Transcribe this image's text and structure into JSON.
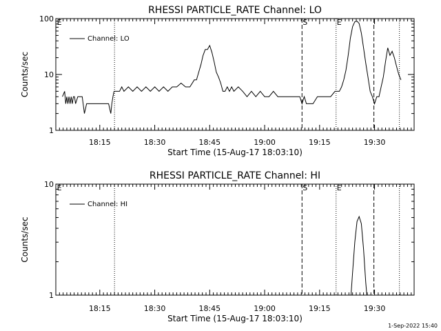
{
  "chart_data": [
    {
      "type": "line",
      "title": "RHESSI PARTICLE_RATE Channel: LO",
      "xlabel": "Start Time (15-Aug-17 18:03:10)",
      "ylabel": "Counts/sec",
      "yscale": "log",
      "ylim": [
        1,
        100
      ],
      "y_ticks": [
        1,
        10,
        100
      ],
      "y_tick_labels": [
        "1",
        "10",
        "100"
      ],
      "x_unit": "minutes",
      "xlim": [
        18.05,
        19.68
      ],
      "x_ticks": [
        18.25,
        18.5,
        18.75,
        19.0,
        19.25,
        19.5
      ],
      "x_tick_labels": [
        "18:15",
        "18:30",
        "18:45",
        "19:00",
        "19:15",
        "19:30"
      ],
      "legend": {
        "placement": "top-left",
        "entries": [
          "Channel: LO"
        ]
      },
      "markers": [
        {
          "x": 18.052,
          "label": "E",
          "style": "none"
        },
        {
          "x": 18.317,
          "label": "",
          "style": "dotted"
        },
        {
          "x": 19.17,
          "label": "S",
          "style": "dashed"
        },
        {
          "x": 19.325,
          "label": "E",
          "style": "dotted"
        },
        {
          "x": 19.497,
          "label": "",
          "style": "dashed"
        },
        {
          "x": 19.613,
          "label": "",
          "style": "dotted"
        }
      ],
      "series": [
        {
          "name": "Channel: LO",
          "x": [
            18.08,
            18.09,
            18.095,
            18.1,
            18.105,
            18.11,
            18.115,
            18.12,
            18.125,
            18.13,
            18.135,
            18.14,
            18.15,
            18.16,
            18.17,
            18.18,
            18.19,
            18.2,
            18.21,
            18.22,
            18.23,
            18.24,
            18.25,
            18.26,
            18.27,
            18.28,
            18.29,
            18.3,
            18.305,
            18.31,
            18.315,
            18.32,
            18.33,
            18.34,
            18.35,
            18.36,
            18.38,
            18.4,
            18.42,
            18.44,
            18.46,
            18.48,
            18.5,
            18.52,
            18.54,
            18.56,
            18.58,
            18.6,
            18.62,
            18.64,
            18.66,
            18.68,
            18.69,
            18.7,
            18.71,
            18.72,
            18.73,
            18.74,
            18.75,
            18.76,
            18.77,
            18.78,
            18.79,
            18.8,
            18.81,
            18.82,
            18.83,
            18.84,
            18.85,
            18.86,
            18.88,
            18.9,
            18.92,
            18.94,
            18.96,
            18.98,
            19.0,
            19.02,
            19.04,
            19.06,
            19.08,
            19.1,
            19.12,
            19.14,
            19.16,
            19.17,
            19.18,
            19.19,
            19.2,
            19.22,
            19.24,
            19.26,
            19.28,
            19.3,
            19.32,
            19.34,
            19.35,
            19.36,
            19.37,
            19.38,
            19.39,
            19.4,
            19.41,
            19.42,
            19.43,
            19.44,
            19.45,
            19.46,
            19.47,
            19.48,
            19.49,
            19.5,
            19.51,
            19.52,
            19.53,
            19.54,
            19.55,
            19.56,
            19.57,
            19.58,
            19.59,
            19.6,
            19.61,
            19.62
          ],
          "values": [
            4,
            5,
            3,
            4,
            3,
            4,
            3,
            4,
            3,
            4,
            4,
            3,
            4,
            4,
            4,
            2,
            3,
            3,
            3,
            3,
            3,
            3,
            3,
            3,
            3,
            3,
            3,
            2,
            3,
            4,
            5,
            5,
            5,
            5,
            6,
            5,
            6,
            5,
            6,
            5,
            6,
            5,
            6,
            5,
            6,
            5,
            6,
            6,
            7,
            6,
            6,
            8,
            8,
            11,
            15,
            22,
            28,
            28,
            33,
            25,
            17,
            11,
            9,
            7,
            5,
            5,
            6,
            5,
            6,
            5,
            6,
            5,
            4,
            5,
            4,
            5,
            4,
            4,
            5,
            4,
            4,
            4,
            4,
            4,
            4,
            3,
            4,
            3,
            3,
            3,
            4,
            4,
            4,
            4,
            5,
            5,
            6,
            8,
            12,
            22,
            45,
            72,
            88,
            90,
            82,
            55,
            30,
            16,
            9,
            5,
            4,
            3,
            4,
            4,
            6,
            9,
            17,
            30,
            22,
            26,
            20,
            14,
            10,
            8
          ]
        }
      ]
    },
    {
      "type": "line",
      "title": "RHESSI PARTICLE_RATE Channel: HI",
      "xlabel": "Start Time (15-Aug-17 18:03:10)",
      "ylabel": "Counts/sec",
      "yscale": "log",
      "ylim": [
        1,
        10
      ],
      "y_ticks": [
        1,
        10
      ],
      "y_tick_labels": [
        "1",
        "10"
      ],
      "x_unit": "minutes",
      "xlim": [
        18.05,
        19.68
      ],
      "x_ticks": [
        18.25,
        18.5,
        18.75,
        19.0,
        19.25,
        19.5
      ],
      "x_tick_labels": [
        "18:15",
        "18:30",
        "18:45",
        "19:00",
        "19:15",
        "19:30"
      ],
      "legend": {
        "placement": "top-left",
        "entries": [
          "Channel: HI"
        ]
      },
      "markers": [
        {
          "x": 18.052,
          "label": "E",
          "style": "none"
        },
        {
          "x": 18.317,
          "label": "",
          "style": "dotted"
        },
        {
          "x": 19.17,
          "label": "S",
          "style": "dashed"
        },
        {
          "x": 19.325,
          "label": "E",
          "style": "dotted"
        },
        {
          "x": 19.497,
          "label": "",
          "style": "dashed"
        },
        {
          "x": 19.613,
          "label": "",
          "style": "dotted"
        }
      ],
      "series": [
        {
          "name": "Channel: HI",
          "x": [
            19.393,
            19.4,
            19.41,
            19.42,
            19.43,
            19.44,
            19.45,
            19.46,
            19.465
          ],
          "values": [
            1,
            1.6,
            3.0,
            4.6,
            5.1,
            4.4,
            2.6,
            1.3,
            1
          ]
        }
      ]
    }
  ],
  "footer": {
    "timestamp": "1-Sep-2022 15:40"
  }
}
